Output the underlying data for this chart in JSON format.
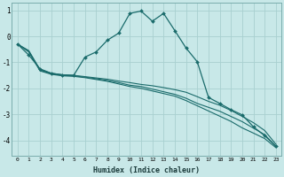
{
  "xlabel": "Humidex (Indice chaleur)",
  "ylabel": "",
  "background_color": "#c8e8e8",
  "grid_color": "#a8d0d0",
  "line_color": "#1a6b6b",
  "xlim": [
    -0.5,
    23.5
  ],
  "ylim": [
    -4.6,
    1.3
  ],
  "xticks": [
    0,
    1,
    2,
    3,
    4,
    5,
    6,
    7,
    8,
    9,
    10,
    11,
    12,
    13,
    14,
    15,
    16,
    17,
    18,
    19,
    20,
    21,
    22,
    23
  ],
  "yticks": [
    1,
    0,
    -1,
    -2,
    -3,
    -4
  ],
  "line1_x": [
    0,
    1,
    2,
    3,
    4,
    5,
    6,
    7,
    8,
    9,
    10,
    11,
    12,
    13,
    14,
    15,
    16,
    17,
    18,
    19,
    20,
    21,
    22,
    23
  ],
  "line1_y": [
    -0.3,
    -0.55,
    -1.28,
    -1.42,
    -1.48,
    -1.5,
    -1.55,
    -1.6,
    -1.65,
    -1.72,
    -1.78,
    -1.85,
    -1.9,
    -1.97,
    -2.05,
    -2.15,
    -2.32,
    -2.5,
    -2.65,
    -2.85,
    -3.08,
    -3.32,
    -3.62,
    -4.15
  ],
  "line2_x": [
    0,
    1,
    2,
    3,
    4,
    5,
    6,
    7,
    8,
    9,
    10,
    11,
    12,
    13,
    14,
    15,
    16,
    17,
    18,
    19,
    20,
    21,
    22,
    23
  ],
  "line2_y": [
    -0.3,
    -0.57,
    -1.3,
    -1.44,
    -1.5,
    -1.52,
    -1.57,
    -1.63,
    -1.7,
    -1.78,
    -1.88,
    -1.93,
    -2.03,
    -2.13,
    -2.23,
    -2.38,
    -2.58,
    -2.73,
    -2.88,
    -3.08,
    -3.28,
    -3.53,
    -3.78,
    -4.23
  ],
  "line3_x": [
    0,
    1,
    2,
    3,
    4,
    5,
    6,
    7,
    8,
    9,
    10,
    11,
    12,
    13,
    14,
    15,
    16,
    17,
    18,
    19,
    20,
    21,
    22,
    23
  ],
  "line3_y": [
    -0.3,
    -0.6,
    -1.33,
    -1.46,
    -1.52,
    -1.54,
    -1.59,
    -1.66,
    -1.73,
    -1.83,
    -1.93,
    -2.0,
    -2.1,
    -2.2,
    -2.3,
    -2.47,
    -2.67,
    -2.87,
    -3.07,
    -3.27,
    -3.52,
    -3.72,
    -3.93,
    -4.28
  ],
  "line4_x": [
    0,
    1,
    2,
    3,
    4,
    5,
    6,
    7,
    8,
    9,
    10,
    11,
    12,
    13,
    14,
    15,
    16,
    17,
    18,
    19,
    20,
    21,
    22,
    23
  ],
  "line4_y": [
    -0.3,
    -0.72,
    -1.25,
    -1.42,
    -1.48,
    -1.5,
    -0.8,
    -0.6,
    -0.15,
    0.12,
    0.88,
    0.97,
    0.58,
    0.88,
    0.22,
    -0.45,
    -0.98,
    -2.35,
    -2.58,
    -2.82,
    -3.02,
    -3.48,
    -3.82,
    -4.22
  ]
}
